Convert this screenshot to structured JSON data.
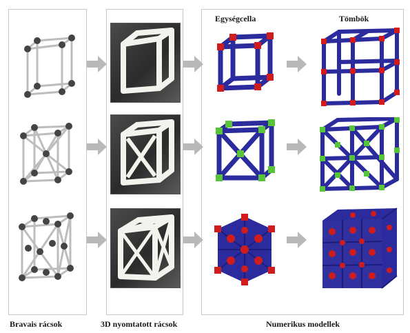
{
  "panels": {
    "bravais": {
      "caption": "Bravais rácsok"
    },
    "printed": {
      "caption": "3D nyomtatott rácsok"
    },
    "numeric": {
      "caption": "Numerikus modellek",
      "col_unit": "Egységcella",
      "col_block": "Tömbök"
    }
  },
  "lattice_rows": [
    "simple-cubic",
    "body-centered-cubic",
    "face-centered-cubic"
  ],
  "colors": {
    "strut_blue": "#2b2b9e",
    "node_red": "#d01c1c",
    "node_green": "#58c43a",
    "atom_grey": "#444444",
    "arrow_grey": "#b9b9b9",
    "printed_white": "#f3f3ee"
  }
}
